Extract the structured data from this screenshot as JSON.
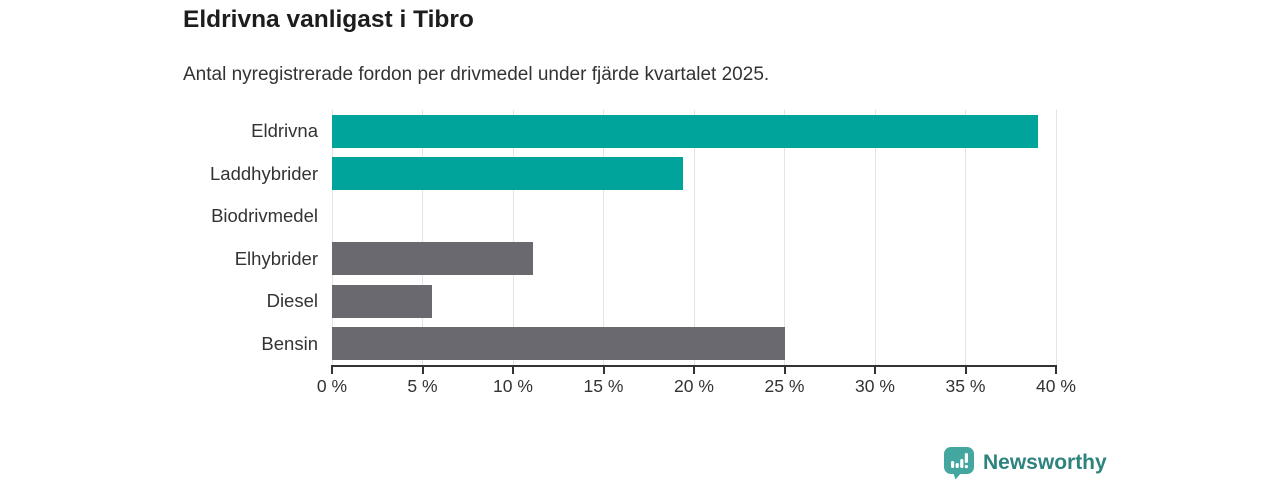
{
  "header": {
    "title": "Eldrivna vanligast i Tibro",
    "subtitle": "Antal nyregistrerade fordon per drivmedel under fjärde kvartalet 2025."
  },
  "chart_data": {
    "type": "bar",
    "orientation": "horizontal",
    "title": "Eldrivna vanligast i Tibro",
    "subtitle": "Antal nyregistrerade fordon per drivmedel under fjärde kvartalet 2025.",
    "categories": [
      "Eldrivna",
      "Laddhybrider",
      "Biodrivmedel",
      "Elhybrider",
      "Diesel",
      "Bensin"
    ],
    "values": [
      39,
      19.4,
      0,
      11.1,
      5.5,
      25
    ],
    "bar_colors": [
      "#00a49a",
      "#00a49a",
      "#6a696f",
      "#6a696f",
      "#6a696f",
      "#6a696f"
    ],
    "xlabel": "",
    "ylabel": "",
    "xlim": [
      0,
      40
    ],
    "x_ticks": [
      0,
      5,
      10,
      15,
      20,
      25,
      30,
      35,
      40
    ],
    "x_tick_suffix": " %",
    "grid": "vertical",
    "legend": "none",
    "unit": "percent"
  },
  "colors": {
    "accent_teal": "#00a49a",
    "neutral_gray": "#6a696f",
    "gridline": "#e3e3e3",
    "axis": "#333333",
    "text_primary": "#1d1d1d",
    "text_secondary": "#333333"
  },
  "footer": {
    "brand": "Newsworthy",
    "brand_icon": "newsworthy-speech-bubble-bar-chart-icon",
    "brand_text_color": "#2e837e",
    "brand_icon_color": "#43a79f"
  }
}
